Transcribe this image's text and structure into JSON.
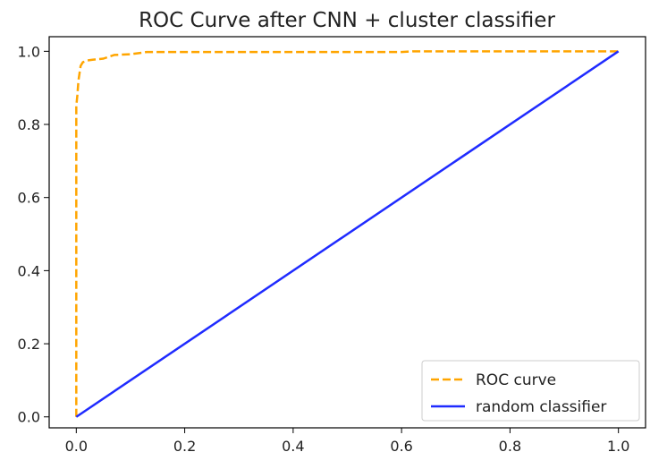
{
  "chart_data": {
    "type": "line",
    "title": "ROC Curve after CNN + cluster classifier",
    "xlabel": "",
    "ylabel": "",
    "xlim": [
      -0.05,
      1.05
    ],
    "ylim": [
      -0.03,
      1.04
    ],
    "xticks": [
      "0.0",
      "0.2",
      "0.4",
      "0.6",
      "0.8",
      "1.0"
    ],
    "xtick_values": [
      0.0,
      0.2,
      0.4,
      0.6,
      0.8,
      1.0
    ],
    "yticks": [
      "0.0",
      "0.2",
      "0.4",
      "0.6",
      "0.8",
      "1.0"
    ],
    "ytick_values": [
      0.0,
      0.2,
      0.4,
      0.6,
      0.8,
      1.0
    ],
    "grid": false,
    "legend_position": "bottom-right",
    "series": [
      {
        "name": "ROC curve",
        "color": "#ffa500",
        "style": "dashed",
        "x": [
          0.0,
          0.0,
          0.002,
          0.004,
          0.006,
          0.008,
          0.012,
          0.02,
          0.03,
          0.05,
          0.07,
          0.1,
          0.13,
          0.2,
          0.4,
          0.6,
          0.62,
          0.8,
          1.0
        ],
        "y": [
          0.0,
          0.85,
          0.88,
          0.92,
          0.94,
          0.96,
          0.97,
          0.975,
          0.977,
          0.98,
          0.99,
          0.992,
          0.998,
          0.998,
          0.998,
          0.998,
          1.0,
          1.0,
          1.0
        ]
      },
      {
        "name": "random classifier",
        "color": "#1f2bff",
        "style": "solid",
        "x": [
          0.0,
          1.0
        ],
        "y": [
          0.0,
          1.0
        ]
      }
    ]
  }
}
